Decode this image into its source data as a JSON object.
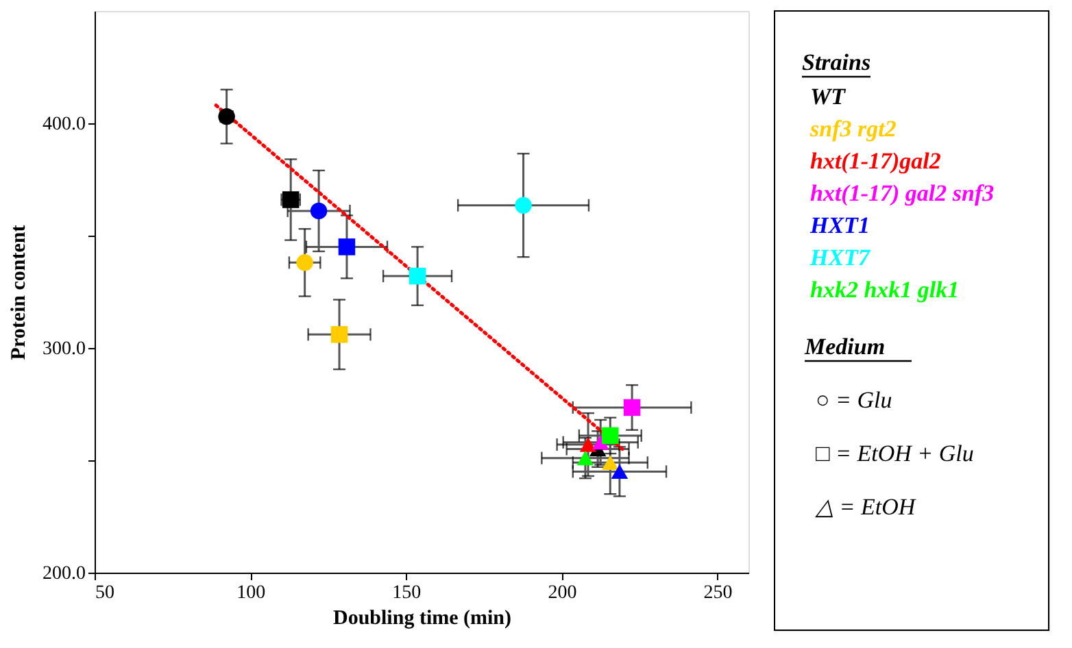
{
  "chart_data": {
    "type": "scatter",
    "xlabel": "Doubling time (min)",
    "ylabel": "Protein content",
    "legend_title": "Strains",
    "legend": "right",
    "xlim": [
      50,
      260
    ],
    "xticks": [
      50,
      100,
      150,
      200,
      250
    ],
    "ylim": [
      200,
      450
    ],
    "yticks": [
      {
        "value": 200,
        "label": "200.0"
      },
      {
        "value": 250,
        "label": null
      },
      {
        "value": 300,
        "label": "300.0"
      },
      {
        "value": 350,
        "label": null
      },
      {
        "value": 400,
        "label": "400.0"
      }
    ],
    "grid": false,
    "annotations": [
      "Medium",
      "○ = Glu",
      "□ = EtOH + Glu",
      "△ = EtOH"
    ],
    "series": [
      {
        "type": "line",
        "color": "#ff0000",
        "line_style": "dotted",
        "x": [
          89,
          219.5
        ],
        "values": [
          408,
          255
        ]
      },
      {
        "name": "WT",
        "color": "#000000",
        "marker": [
          "circle",
          "square",
          "triangle"
        ],
        "x": [
          92.4,
          113,
          211.6
        ],
        "values": [
          403,
          366,
          255
        ],
        "errors": [
          12,
          18,
          8
        ],
        "xerrors": [
          2,
          3,
          10
        ]
      },
      {
        "name": "snf3 rgt2",
        "color": "#ffcc00",
        "marker": [
          "circle",
          "square",
          "triangle"
        ],
        "x": [
          117.5,
          128.6,
          215.6
        ],
        "values": [
          338,
          306,
          249
        ],
        "errors": [
          15,
          15.5,
          14
        ],
        "xerrors": [
          5,
          10,
          12
        ]
      },
      {
        "name": "hxt(1-17)gal2",
        "color": "#ff0000",
        "marker": [
          "triangle"
        ],
        "x": [
          208.5
        ],
        "values": [
          257
        ],
        "errors": [
          14
        ],
        "xerrors": [
          10
        ]
      },
      {
        "name": "hxt(1-17) gal2 snf3",
        "color": "#ff00ff",
        "marker": [
          "square",
          "triangle"
        ],
        "x": [
          222.6,
          212.5
        ],
        "values": [
          273.5,
          258
        ],
        "errors": [
          10,
          10
        ],
        "xerrors": [
          19,
          12
        ]
      },
      {
        "name": "HXT1",
        "color": "#0000ff",
        "marker": [
          "circle",
          "square",
          "triangle"
        ],
        "x": [
          122,
          131,
          218.6
        ],
        "values": [
          361,
          345,
          245
        ],
        "errors": [
          18,
          14,
          11
        ],
        "xerrors": [
          10,
          13,
          15
        ]
      },
      {
        "name": "HXT7",
        "color": "#00ffff",
        "marker": [
          "circle",
          "square"
        ],
        "x": [
          187.7,
          153.7
        ],
        "values": [
          363.5,
          332
        ],
        "errors": [
          23,
          13
        ],
        "xerrors": [
          21,
          11
        ]
      },
      {
        "name": "hxk2 hxk1 glk1",
        "color": "#00ff00",
        "marker": [
          "square",
          "triangle"
        ],
        "x": [
          215.6,
          207.6
        ],
        "values": [
          261,
          251
        ],
        "errors": [
          8,
          9
        ],
        "xerrors": [
          10,
          14
        ]
      }
    ]
  }
}
